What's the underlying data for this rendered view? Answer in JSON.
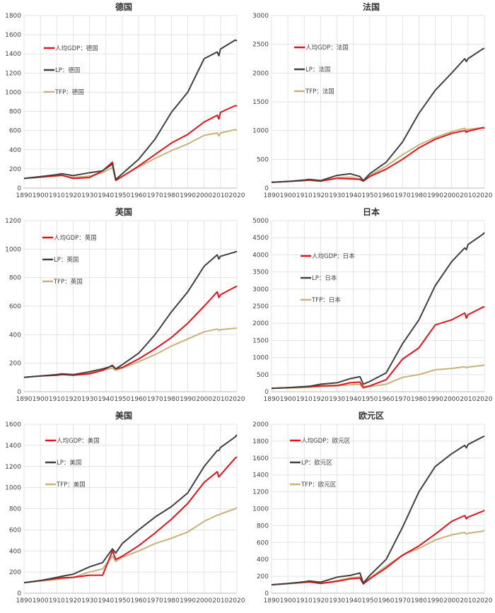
{
  "chart_data": [
    {
      "type": "line",
      "title": "德国",
      "ylim": [
        0,
        1800
      ],
      "ytick_step": 200,
      "xlim": [
        1890,
        2020
      ],
      "xticks": [
        1890,
        1900,
        1910,
        1920,
        1930,
        1940,
        1950,
        1960,
        1970,
        1980,
        1990,
        2000,
        2010,
        2020
      ],
      "grid": true,
      "legend_position": "upper-left",
      "x": [
        1890,
        1900,
        1910,
        1913,
        1920,
        1930,
        1938,
        1944,
        1946,
        1950,
        1960,
        1970,
        1980,
        1990,
        2000,
        2008,
        2009,
        2010,
        2019,
        2020
      ],
      "series": [
        {
          "name": "人均GDP：德国",
          "color": "#e0141e",
          "values": [
            100,
            115,
            130,
            135,
            100,
            110,
            180,
            270,
            80,
            120,
            230,
            350,
            470,
            560,
            690,
            760,
            720,
            790,
            860,
            855
          ]
        },
        {
          "name": "LP：德国",
          "color": "#404040",
          "values": [
            100,
            120,
            140,
            150,
            130,
            160,
            180,
            250,
            90,
            150,
            300,
            510,
            790,
            1000,
            1350,
            1420,
            1380,
            1450,
            1545,
            1535
          ]
        },
        {
          "name": "TFP：德国",
          "color": "#c8b27a",
          "values": [
            100,
            112,
            125,
            130,
            110,
            125,
            160,
            215,
            80,
            125,
            220,
            310,
            390,
            460,
            550,
            575,
            545,
            575,
            610,
            600
          ]
        }
      ]
    },
    {
      "type": "line",
      "title": "法国",
      "ylim": [
        0,
        3000
      ],
      "ytick_step": 500,
      "xlim": [
        1890,
        2020
      ],
      "xticks": [
        1890,
        1900,
        1910,
        1920,
        1930,
        1940,
        1950,
        1960,
        1970,
        1980,
        1990,
        2000,
        2010,
        2020
      ],
      "grid": true,
      "legend_position": "upper-left",
      "x": [
        1890,
        1900,
        1910,
        1913,
        1920,
        1930,
        1938,
        1944,
        1946,
        1950,
        1960,
        1970,
        1980,
        1990,
        2000,
        2008,
        2009,
        2010,
        2019,
        2020
      ],
      "series": [
        {
          "name": "人均GDP：法国",
          "color": "#e0141e",
          "values": [
            100,
            115,
            130,
            140,
            120,
            170,
            160,
            150,
            120,
            200,
            330,
            500,
            700,
            850,
            950,
            1000,
            970,
            990,
            1050,
            1040
          ]
        },
        {
          "name": "LP：法国",
          "color": "#404040",
          "values": [
            100,
            115,
            140,
            150,
            130,
            220,
            250,
            200,
            130,
            250,
            450,
            800,
            1300,
            1700,
            2000,
            2250,
            2200,
            2250,
            2420,
            2430
          ]
        },
        {
          "name": "TFP：法国",
          "color": "#c8b27a",
          "values": [
            100,
            115,
            130,
            135,
            120,
            180,
            190,
            160,
            120,
            220,
            380,
            580,
            750,
            880,
            980,
            1040,
            1010,
            1020,
            1050,
            1060
          ]
        }
      ]
    },
    {
      "type": "line",
      "title": "英国",
      "ylim": [
        0,
        1200
      ],
      "ytick_step": 200,
      "xlim": [
        1890,
        2020
      ],
      "xticks": [
        1890,
        1900,
        1910,
        1920,
        1930,
        1940,
        1950,
        1960,
        1970,
        1980,
        1990,
        2000,
        2010,
        2020
      ],
      "grid": true,
      "legend_position": "upper-left",
      "x": [
        1890,
        1900,
        1910,
        1913,
        1920,
        1930,
        1938,
        1944,
        1946,
        1950,
        1960,
        1970,
        1980,
        1990,
        2000,
        2008,
        2009,
        2010,
        2019,
        2020
      ],
      "series": [
        {
          "name": "人均GDP：英国",
          "color": "#e0141e",
          "values": [
            100,
            110,
            115,
            120,
            115,
            125,
            150,
            185,
            160,
            170,
            230,
            300,
            380,
            480,
            600,
            700,
            660,
            680,
            735,
            740
          ]
        },
        {
          "name": "LP：英国",
          "color": "#404040",
          "values": [
            100,
            110,
            120,
            125,
            120,
            140,
            160,
            180,
            160,
            190,
            270,
            400,
            560,
            700,
            880,
            960,
            930,
            950,
            980,
            985
          ]
        },
        {
          "name": "TFP：英国",
          "color": "#c8b27a",
          "values": [
            100,
            110,
            115,
            120,
            115,
            130,
            150,
            165,
            150,
            165,
            210,
            260,
            320,
            370,
            420,
            440,
            430,
            435,
            445,
            445
          ]
        }
      ]
    },
    {
      "type": "line",
      "title": "日本",
      "ylim": [
        0,
        5000
      ],
      "ytick_step": 500,
      "xlim": [
        1890,
        2020
      ],
      "xticks": [
        1890,
        1900,
        1910,
        1920,
        1930,
        1940,
        1950,
        1960,
        1970,
        1980,
        1990,
        2000,
        2010,
        2020
      ],
      "grid": true,
      "legend_position": "upper-left",
      "x": [
        1890,
        1900,
        1910,
        1913,
        1920,
        1930,
        1938,
        1944,
        1946,
        1950,
        1960,
        1970,
        1980,
        1990,
        2000,
        2008,
        2009,
        2010,
        2019,
        2020
      ],
      "series": [
        {
          "name": "人均GDP：日本",
          "color": "#e0141e",
          "values": [
            100,
            120,
            140,
            150,
            170,
            180,
            260,
            280,
            130,
            170,
            350,
            950,
            1280,
            1950,
            2100,
            2300,
            2150,
            2250,
            2470,
            2480
          ]
        },
        {
          "name": "LP：日本",
          "color": "#404040",
          "values": [
            100,
            120,
            150,
            160,
            220,
            260,
            380,
            440,
            220,
            300,
            550,
            1400,
            2100,
            3100,
            3800,
            4200,
            4150,
            4300,
            4600,
            4650
          ]
        },
        {
          "name": "TFP：日本",
          "color": "#c8b27a",
          "values": [
            100,
            110,
            120,
            125,
            150,
            170,
            200,
            210,
            100,
            150,
            220,
            420,
            500,
            640,
            680,
            730,
            700,
            720,
            770,
            780
          ]
        }
      ]
    },
    {
      "type": "line",
      "title": "美国",
      "ylim": [
        0,
        1600
      ],
      "ytick_step": 200,
      "xlim": [
        1890,
        2020
      ],
      "xticks": [
        1890,
        1900,
        1910,
        1920,
        1930,
        1940,
        1950,
        1960,
        1970,
        1980,
        1990,
        2000,
        2010,
        2020
      ],
      "grid": true,
      "legend_position": "upper-left",
      "x": [
        1890,
        1900,
        1910,
        1913,
        1920,
        1930,
        1938,
        1944,
        1946,
        1950,
        1960,
        1970,
        1980,
        1990,
        2000,
        2008,
        2009,
        2010,
        2019,
        2020
      ],
      "series": [
        {
          "name": "人均GDP：美国",
          "color": "#e0141e",
          "values": [
            100,
            120,
            140,
            145,
            150,
            170,
            170,
            400,
            320,
            350,
            450,
            570,
            700,
            850,
            1050,
            1150,
            1100,
            1120,
            1280,
            1290
          ]
        },
        {
          "name": "LP：美国",
          "color": "#404040",
          "values": [
            100,
            120,
            150,
            160,
            180,
            250,
            290,
            420,
            380,
            470,
            600,
            720,
            820,
            950,
            1200,
            1350,
            1350,
            1380,
            1480,
            1500
          ]
        },
        {
          "name": "TFP：美国",
          "color": "#c8b27a",
          "values": [
            100,
            115,
            130,
            135,
            150,
            200,
            230,
            350,
            300,
            340,
            400,
            470,
            520,
            580,
            680,
            740,
            740,
            750,
            800,
            810
          ]
        }
      ]
    },
    {
      "type": "line",
      "title": "欧元区",
      "ylim": [
        0,
        2000
      ],
      "ytick_step": 200,
      "xlim": [
        1890,
        2020
      ],
      "xticks": [
        1890,
        1900,
        1910,
        1920,
        1930,
        1940,
        1950,
        1960,
        1970,
        1980,
        1990,
        2000,
        2010,
        2020
      ],
      "grid": true,
      "legend_position": "upper-left",
      "x": [
        1890,
        1900,
        1910,
        1913,
        1920,
        1930,
        1938,
        1944,
        1946,
        1950,
        1960,
        1970,
        1980,
        1990,
        2000,
        2008,
        2009,
        2010,
        2019,
        2020
      ],
      "series": [
        {
          "name": "人均GDP：欧元区",
          "color": "#e0141e",
          "values": [
            100,
            115,
            130,
            135,
            115,
            140,
            170,
            180,
            110,
            170,
            300,
            450,
            560,
            700,
            850,
            920,
            880,
            900,
            970,
            980
          ]
        },
        {
          "name": "LP：欧元区",
          "color": "#404040",
          "values": [
            100,
            115,
            135,
            145,
            130,
            190,
            210,
            240,
            120,
            210,
            400,
            780,
            1200,
            1500,
            1650,
            1750,
            1720,
            1760,
            1850,
            1860
          ]
        },
        {
          "name": "TFP：欧元区",
          "color": "#c8b27a",
          "values": [
            100,
            112,
            125,
            130,
            115,
            150,
            180,
            190,
            110,
            180,
            320,
            450,
            530,
            630,
            690,
            720,
            700,
            710,
            735,
            745
          ]
        }
      ]
    }
  ]
}
